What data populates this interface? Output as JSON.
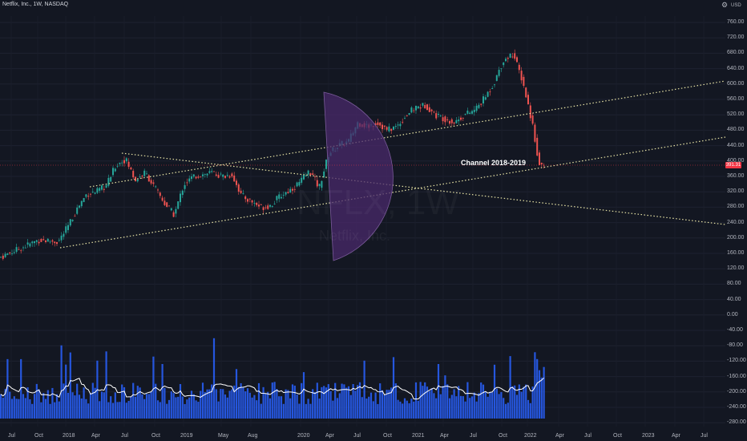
{
  "header": {
    "symbol_line": "Netflix, Inc., 1W, NASDAQ",
    "currency": "USD"
  },
  "watermark": {
    "ticker": "NFLX, 1W",
    "name": "Netflix, Inc."
  },
  "price_axis": {
    "ticks": [
      "760.00",
      "720.00",
      "680.00",
      "640.00",
      "600.00",
      "560.00",
      "520.00",
      "480.00",
      "440.00",
      "400.00",
      "360.00",
      "320.00",
      "280.00",
      "240.00",
      "200.00",
      "160.00",
      "120.00",
      "80.00",
      "40.00",
      "0.00",
      "-40.00",
      "-80.00",
      "-120.00",
      "-160.00",
      "-200.00",
      "-240.00",
      "-280.00"
    ],
    "current_price": "391.31"
  },
  "time_axis": {
    "ticks": [
      "Jul",
      "Oct",
      "2018",
      "Apr",
      "Jul",
      "Oct",
      "2019",
      "May",
      "Aug",
      "2020",
      "Apr",
      "Jul",
      "Oct",
      "2021",
      "Apr",
      "Jul",
      "Oct",
      "2022",
      "Apr",
      "Jul",
      "Oct",
      "2023",
      "Apr",
      "Jul"
    ]
  },
  "annotation": {
    "channel_label": "Channel 2018-2019"
  },
  "colors": {
    "background": "#131722",
    "up": "#26a69a",
    "down": "#ef5350",
    "volume": "#2962ff",
    "volume_ma": "#ffffff",
    "trendline": "#e8e4a6",
    "arc_fill": "#4a2a6b",
    "price_line": "#f23645"
  },
  "chart_data": {
    "type": "candlestick",
    "y_axis": {
      "range": [
        -300,
        780
      ],
      "unit": "USD"
    },
    "x_axis": {
      "range": [
        "2017-06",
        "2023-09"
      ]
    },
    "close_path": [
      [
        "2017-06",
        150
      ],
      [
        "2017-08",
        172
      ],
      [
        "2017-10",
        195
      ],
      [
        "2017-12",
        190
      ],
      [
        "2018-01",
        230
      ],
      [
        "2018-02",
        280
      ],
      [
        "2018-03",
        315
      ],
      [
        "2018-04",
        320
      ],
      [
        "2018-05",
        335
      ],
      [
        "2018-06",
        390
      ],
      [
        "2018-07",
        405
      ],
      [
        "2018-08",
        350
      ],
      [
        "2018-09",
        370
      ],
      [
        "2018-10",
        330
      ],
      [
        "2018-11",
        290
      ],
      [
        "2018-12",
        260
      ],
      [
        "2019-01",
        340
      ],
      [
        "2019-02",
        360
      ],
      [
        "2019-03",
        365
      ],
      [
        "2019-04",
        370
      ],
      [
        "2019-05",
        360
      ],
      [
        "2019-06",
        365
      ],
      [
        "2019-07",
        310
      ],
      [
        "2019-08",
        295
      ],
      [
        "2019-09",
        280
      ],
      [
        "2019-10",
        285
      ],
      [
        "2019-11",
        310
      ],
      [
        "2019-12",
        325
      ],
      [
        "2020-01",
        345
      ],
      [
        "2020-02",
        375
      ],
      [
        "2020-03",
        330
      ],
      [
        "2020-04",
        420
      ],
      [
        "2020-05",
        440
      ],
      [
        "2020-06",
        450
      ],
      [
        "2020-07",
        500
      ],
      [
        "2020-08",
        490
      ],
      [
        "2020-09",
        500
      ],
      [
        "2020-10",
        480
      ],
      [
        "2020-11",
        490
      ],
      [
        "2020-12",
        520
      ],
      [
        "2021-01",
        540
      ],
      [
        "2021-02",
        545
      ],
      [
        "2021-03",
        520
      ],
      [
        "2021-04",
        510
      ],
      [
        "2021-05",
        500
      ],
      [
        "2021-06",
        520
      ],
      [
        "2021-07",
        530
      ],
      [
        "2021-08",
        560
      ],
      [
        "2021-09",
        600
      ],
      [
        "2021-10",
        660
      ],
      [
        "2021-11",
        680
      ],
      [
        "2021-12",
        610
      ],
      [
        "2022-01",
        500
      ],
      [
        "2022-01-21",
        400
      ],
      [
        "2022-02",
        391
      ]
    ],
    "annotations": [
      {
        "text": "Channel 2018-2019"
      }
    ],
    "current_price": 391.31
  }
}
